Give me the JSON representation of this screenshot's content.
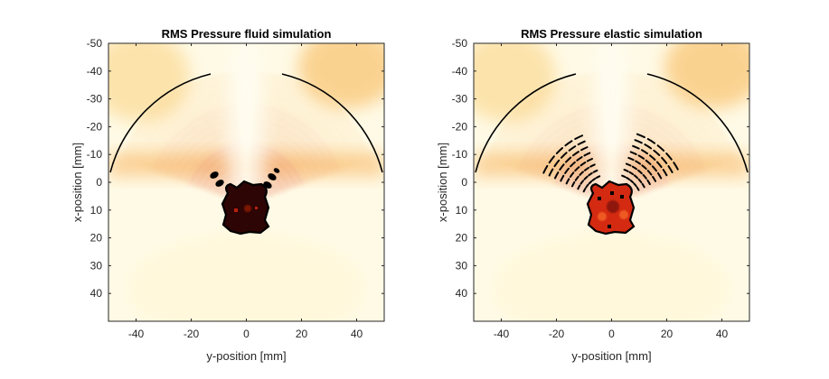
{
  "figure": {
    "panels": [
      {
        "title": "RMS Pressure fluid simulation",
        "xlabel": "y-position [mm]",
        "ylabel": "x-position [mm]",
        "xticks": [
          -40,
          -20,
          0,
          20,
          40
        ],
        "yticks": [
          -50,
          -40,
          -30,
          -20,
          -10,
          0,
          10,
          20,
          30,
          40
        ],
        "xlim": [
          -50,
          50
        ],
        "ylim": [
          -50,
          50
        ],
        "yreversed": true,
        "colormap": "hot",
        "colors": {
          "background": "#fff9d8",
          "mid": "#fbd56a",
          "ridge": "#e2421a",
          "target": "#2a0303",
          "contour": "#000000"
        }
      },
      {
        "title": "RMS Pressure elastic simulation",
        "xlabel": "y-position [mm]",
        "ylabel": "x-position [mm]",
        "xticks": [
          -40,
          -20,
          0,
          20,
          40
        ],
        "yticks": [
          -50,
          -40,
          -30,
          -20,
          -10,
          0,
          10,
          20,
          30,
          40
        ],
        "xlim": [
          -50,
          50
        ],
        "ylim": [
          -50,
          50
        ],
        "yreversed": true,
        "colormap": "hot",
        "colors": {
          "background": "#fff9d8",
          "mid": "#fbd56a",
          "ridge": "#e2421a",
          "target": "#c81d0e",
          "contour": "#000000"
        }
      }
    ]
  }
}
